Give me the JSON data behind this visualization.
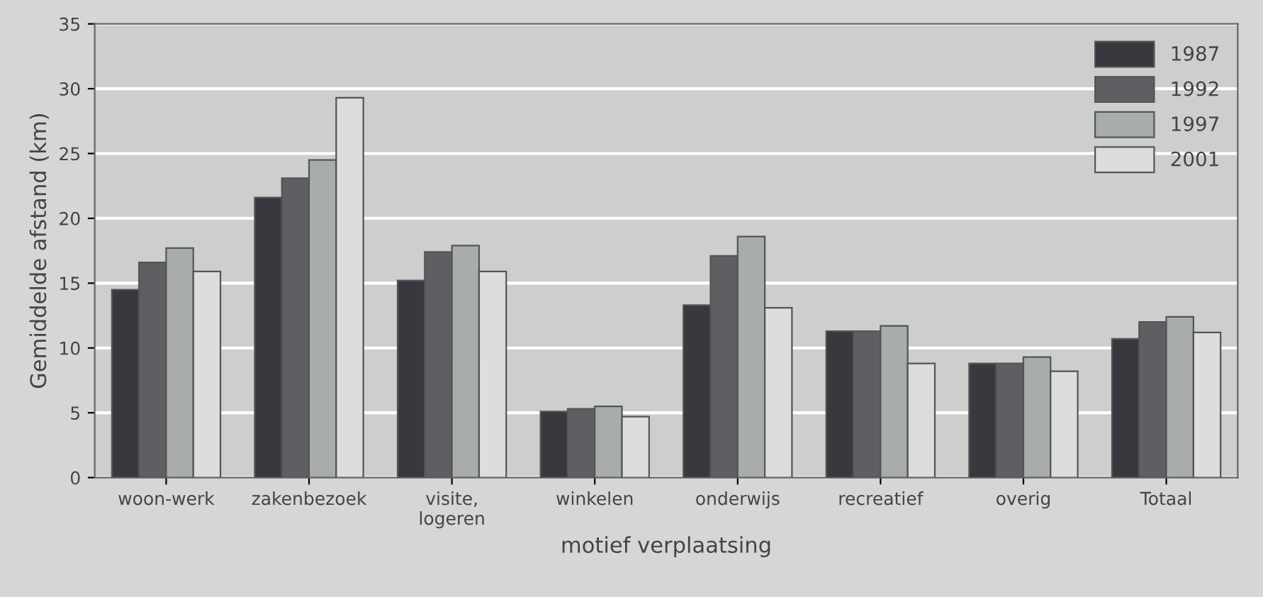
{
  "chart_data": {
    "type": "bar",
    "xlabel": "motief verplaatsing",
    "ylabel": "Gemiddelde afstand (km)",
    "categories": [
      "woon-werk",
      "zakenbezoek",
      "visite,\nlogeren",
      "winkelen",
      "onderwijs",
      "recreatief",
      "overig",
      "Totaal"
    ],
    "series": [
      {
        "name": "1987",
        "color": "#38383e",
        "values": [
          14.5,
          21.6,
          15.2,
          5.1,
          13.3,
          11.3,
          8.8,
          10.7
        ]
      },
      {
        "name": "1992",
        "color": "#5f5f63",
        "values": [
          16.6,
          23.1,
          17.4,
          5.3,
          17.1,
          11.3,
          8.8,
          12.0
        ]
      },
      {
        "name": "1997",
        "color": "#a9adaa",
        "values": [
          17.7,
          24.5,
          17.9,
          5.5,
          18.6,
          11.7,
          9.3,
          12.4
        ]
      },
      {
        "name": "2001",
        "color": "#dddddd",
        "values": [
          15.9,
          29.3,
          15.9,
          4.7,
          13.1,
          8.8,
          8.2,
          11.2
        ]
      }
    ],
    "ylim": [
      0,
      35
    ],
    "yticks": [
      0,
      5,
      10,
      15,
      20,
      25,
      30,
      35
    ],
    "grid": "y",
    "legend": "top right"
  }
}
